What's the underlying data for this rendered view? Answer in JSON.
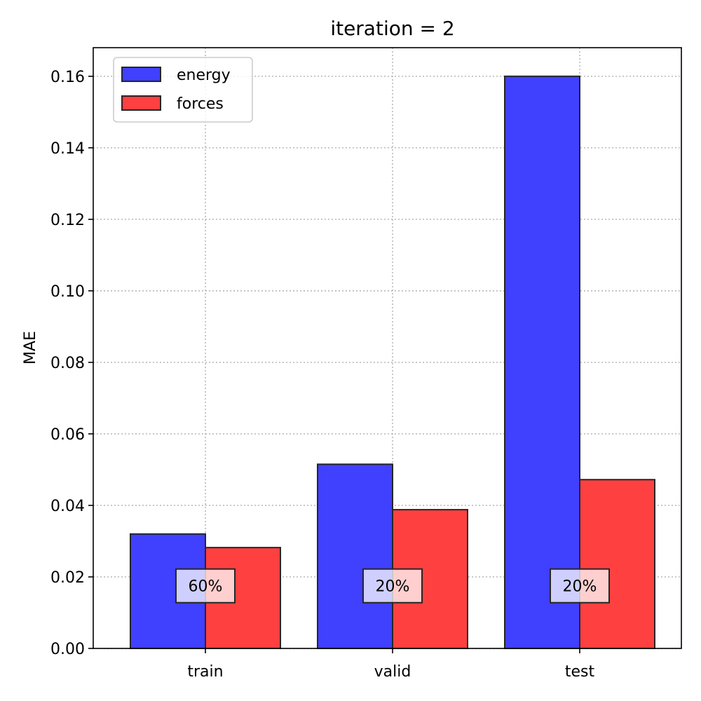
{
  "chart_data": {
    "type": "bar",
    "title": "iteration = 2",
    "xlabel": "",
    "ylabel": "MAE",
    "categories": [
      "train",
      "valid",
      "test"
    ],
    "series": [
      {
        "name": "energy",
        "color": "#4040ff",
        "values": [
          0.032,
          0.0515,
          0.16
        ]
      },
      {
        "name": "forces",
        "color": "#ff4040",
        "values": [
          0.0282,
          0.0388,
          0.0472
        ]
      }
    ],
    "ylim": [
      0,
      0.168
    ],
    "yticks": [
      0.0,
      0.02,
      0.04,
      0.06,
      0.08,
      0.1,
      0.12,
      0.14,
      0.16
    ],
    "ytick_labels": [
      "0.00",
      "0.02",
      "0.04",
      "0.06",
      "0.08",
      "0.10",
      "0.12",
      "0.14",
      "0.16"
    ],
    "annotations": [
      {
        "category": "train",
        "text": "60%",
        "y": 0.0175
      },
      {
        "category": "valid",
        "text": "20%",
        "y": 0.0175
      },
      {
        "category": "test",
        "text": "20%",
        "y": 0.0175
      }
    ],
    "grid": true,
    "legend_position": "top-left"
  }
}
